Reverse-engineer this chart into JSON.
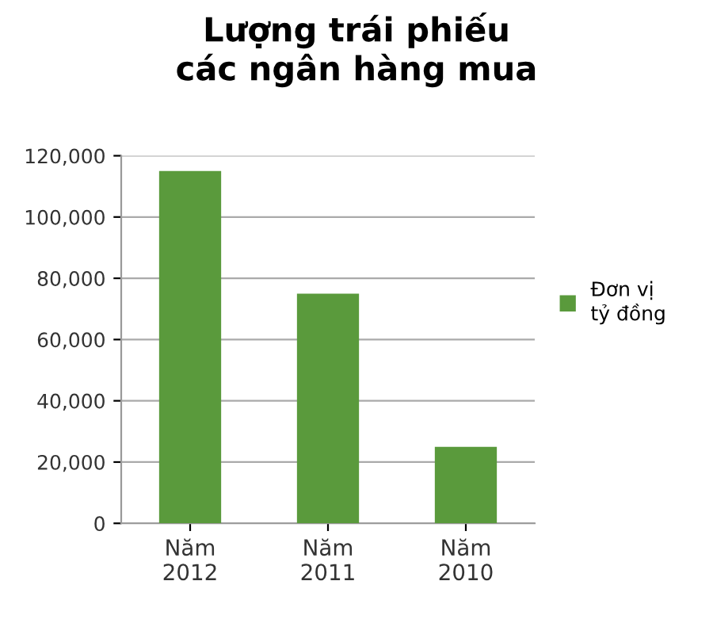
{
  "chart_data": {
    "type": "bar",
    "title": "Lượng trái phiếu\ncác ngân hàng mua",
    "categories": [
      "Năm\n2012",
      "Năm\n2011",
      "Năm\n2010"
    ],
    "series": [
      {
        "name": "Đơn vị\ntỷ đồng",
        "color": "#5a9a3c",
        "values": [
          115000,
          75000,
          25000
        ]
      }
    ],
    "ylim": [
      0,
      120000
    ],
    "yticks": [
      {
        "value": 0,
        "label": "0"
      },
      {
        "value": 20000,
        "label": "20,000"
      },
      {
        "value": 40000,
        "label": "40,000"
      },
      {
        "value": 60000,
        "label": "60,000"
      },
      {
        "value": 80000,
        "label": "80,000"
      },
      {
        "value": 100000,
        "label": "100,000"
      },
      {
        "value": 120000,
        "label": "120,000"
      }
    ],
    "grid": "y",
    "legend": "right"
  }
}
